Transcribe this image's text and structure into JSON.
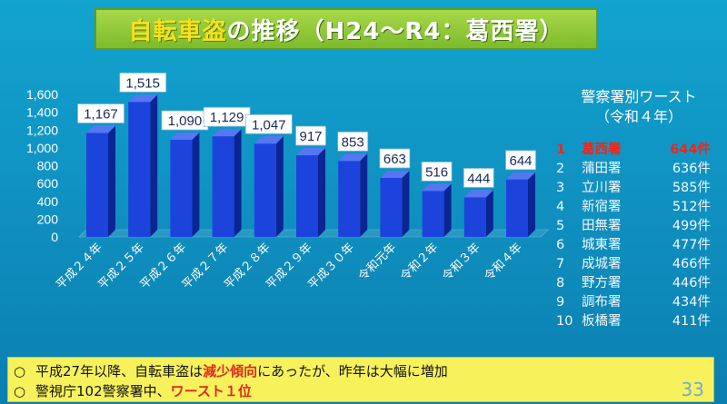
{
  "title": {
    "main": "自転車盗",
    "rest": "の推移（H24～R4：葛西署）"
  },
  "colors": {
    "bar_front": "#1c44dc",
    "bar_side": "#0c2494",
    "bar_top": "#5577f2",
    "highlight": "#e8281f",
    "bottom_bg": "#f7f25c"
  },
  "chart_data": {
    "type": "bar",
    "categories": [
      "平成２４年",
      "平成２５年",
      "平成２６年",
      "平成２７年",
      "平成２８年",
      "平成２９年",
      "平成３０年",
      "令和元年",
      "令和２年",
      "令和３年",
      "令和４年"
    ],
    "values": [
      1167,
      1515,
      1090,
      1129,
      1047,
      917,
      853,
      663,
      516,
      444,
      644
    ],
    "value_labels": [
      "1,167",
      "1,515",
      "1,090",
      "1,129",
      "1,047",
      "917",
      "853",
      "663",
      "516",
      "444",
      "644"
    ],
    "yticks": [
      "0",
      "200",
      "400",
      "600",
      "800",
      "1,000",
      "1,200",
      "1,400",
      "1,600"
    ],
    "ylim": [
      0,
      1600
    ],
    "grid": false,
    "title": "",
    "xlabel": "",
    "ylabel": ""
  },
  "ranking": {
    "title_line1": "警察署別ワースト",
    "title_line2": "（令和４年）",
    "items": [
      {
        "rank": "1",
        "name": "葛西署",
        "count": "644件",
        "highlight": true
      },
      {
        "rank": "2",
        "name": "蒲田署",
        "count": "636件",
        "highlight": false
      },
      {
        "rank": "3",
        "name": "立川署",
        "count": "585件",
        "highlight": false
      },
      {
        "rank": "4",
        "name": "新宿署",
        "count": "512件",
        "highlight": false
      },
      {
        "rank": "5",
        "name": "田無署",
        "count": "499件",
        "highlight": false
      },
      {
        "rank": "6",
        "name": "城東署",
        "count": "477件",
        "highlight": false
      },
      {
        "rank": "7",
        "name": "成城署",
        "count": "466件",
        "highlight": false
      },
      {
        "rank": "8",
        "name": "野方署",
        "count": "446件",
        "highlight": false
      },
      {
        "rank": "9",
        "name": "調布署",
        "count": "434件",
        "highlight": false
      },
      {
        "rank": "10",
        "name": "板橋署",
        "count": "411件",
        "highlight": false
      }
    ]
  },
  "bullets": {
    "line1": {
      "circle": "○",
      "pre": "平成27年以降、自転車盗は",
      "red": "減少傾向",
      "post": "にあったが、昨年は大幅に増加"
    },
    "line2": {
      "circle": "○",
      "pre": "警視庁102警察署中、",
      "red": "ワースト１位"
    }
  },
  "page_number": "33"
}
